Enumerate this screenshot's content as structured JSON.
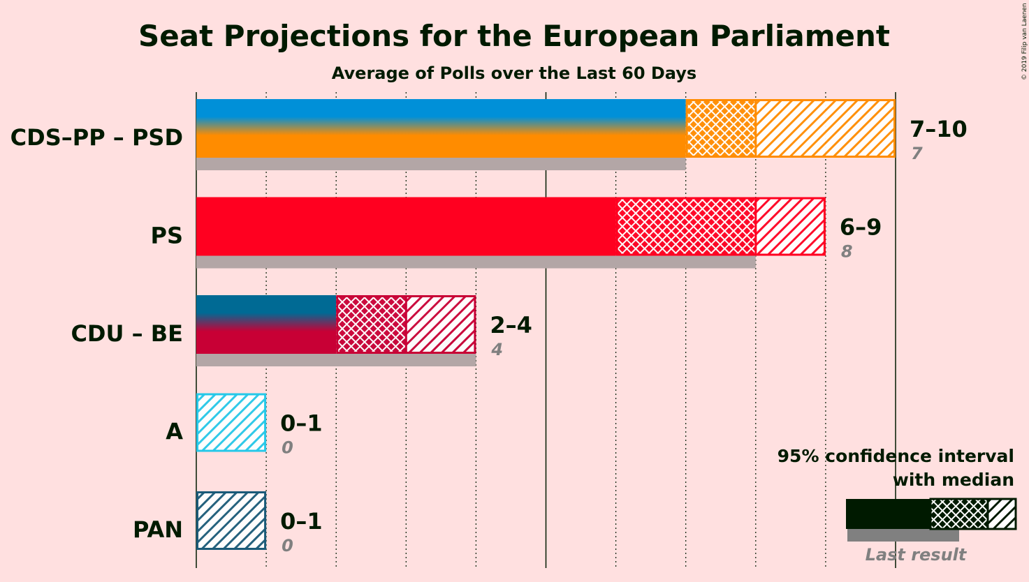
{
  "chart_data": {
    "type": "bar",
    "title": "Seat Projections for the European Parliament",
    "subtitle": "Average of Polls over the Last 60 Days",
    "x_range": [
      0,
      10
    ],
    "parties": [
      {
        "name": "CDS–PP – PSD",
        "colors": [
          "#0090d8",
          "#ff8c00"
        ],
        "ci_low": 7,
        "median": 8,
        "ci_high": 10,
        "range_label": "7–10",
        "last_result": 7,
        "last_label": "7"
      },
      {
        "name": "PS",
        "colors": [
          "#ff0020"
        ],
        "ci_low": 6,
        "median": 8,
        "ci_high": 9,
        "range_label": "6–9",
        "last_result": 8,
        "last_label": "8"
      },
      {
        "name": "CDU – BE",
        "colors": [
          "#006a94",
          "#c80035"
        ],
        "ci_low": 2,
        "median": 3,
        "ci_high": 4,
        "range_label": "2–4",
        "last_result": 4,
        "last_label": "4"
      },
      {
        "name": "A",
        "colors": [
          "#25c8e8"
        ],
        "ci_low": 0,
        "median": 0,
        "ci_high": 1,
        "range_label": "0–1",
        "last_result": 0,
        "last_label": "0"
      },
      {
        "name": "PAN",
        "colors": [
          "#1a5a78"
        ],
        "ci_low": 0,
        "median": 0,
        "ci_high": 1,
        "range_label": "0–1",
        "last_result": 0,
        "last_label": "0"
      }
    ],
    "legend": {
      "line1": "95% confidence interval",
      "line2": "with median",
      "last_result_label": "Last result",
      "placement": "bottom-right"
    },
    "copyright": "© 2019 Filip van Laenen"
  }
}
